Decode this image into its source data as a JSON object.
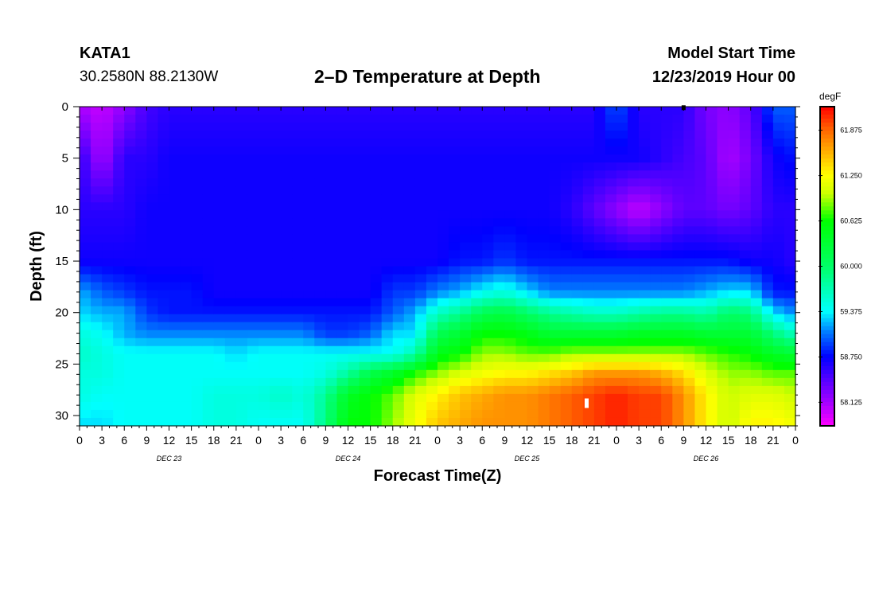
{
  "header": {
    "station": "KATA1",
    "coordinates": "30.2580N 88.2130W",
    "title": "2–D Temperature at Depth",
    "model_start_label": "Model Start Time",
    "model_start_value": "12/23/2019 Hour 00"
  },
  "colorbar": {
    "unit": "degF",
    "tick_labels": [
      "61.875",
      "61.250",
      "60.625",
      "60.000",
      "59.375",
      "58.750",
      "58.125"
    ]
  },
  "chart_data": {
    "type": "heatmap",
    "title": "2–D Temperature at Depth",
    "xlabel": "Forecast Time(Z)",
    "ylabel": "Depth (ft)",
    "x_tick_labels": [
      "0",
      "3",
      "6",
      "9",
      "12",
      "15",
      "18",
      "21",
      "0",
      "3",
      "6",
      "9",
      "12",
      "15",
      "18",
      "21",
      "0",
      "3",
      "6",
      "9",
      "12",
      "15",
      "18",
      "21",
      "0",
      "3",
      "6",
      "9",
      "12",
      "15",
      "18",
      "21",
      "0"
    ],
    "x_range_hours": [
      0,
      96
    ],
    "date_labels": [
      {
        "label": "DEC 23",
        "hour": 12
      },
      {
        "label": "DEC 24",
        "hour": 36
      },
      {
        "label": "DEC 25",
        "hour": 60
      },
      {
        "label": "DEC 26",
        "hour": 84
      }
    ],
    "y_tick_labels": [
      "0",
      "5",
      "10",
      "15",
      "20",
      "25",
      "30"
    ],
    "y_range_ft": [
      0,
      31
    ],
    "y_inverted": true,
    "value_unit": "degF",
    "value_range": [
      57.8,
      62.2
    ],
    "colorscale": [
      {
        "v": 57.8,
        "c": "#ff00ff"
      },
      {
        "v": 58.1,
        "c": "#aa00ff"
      },
      {
        "v": 58.5,
        "c": "#4400ff"
      },
      {
        "v": 58.75,
        "c": "#0000ff"
      },
      {
        "v": 59.1,
        "c": "#0080ff"
      },
      {
        "v": 59.375,
        "c": "#00ffff"
      },
      {
        "v": 60.0,
        "c": "#00ff66"
      },
      {
        "v": 60.625,
        "c": "#00ff00"
      },
      {
        "v": 61.0,
        "c": "#ccff00"
      },
      {
        "v": 61.25,
        "c": "#ffff00"
      },
      {
        "v": 61.6,
        "c": "#ffaa00"
      },
      {
        "v": 61.875,
        "c": "#ff6600"
      },
      {
        "v": 62.2,
        "c": "#ff0000"
      }
    ],
    "hours": [
      0,
      3,
      6,
      9,
      12,
      15,
      18,
      21,
      24,
      27,
      30,
      33,
      36,
      39,
      42,
      45,
      48,
      51,
      54,
      57,
      60,
      63,
      66,
      69,
      72,
      75,
      78,
      81,
      84,
      87,
      90,
      93,
      96
    ],
    "depths_ft": [
      0,
      5,
      10,
      15,
      18,
      20,
      22,
      24,
      26,
      28,
      31
    ],
    "values": [
      [
        58.1,
        58.6,
        58.6,
        58.7,
        59.2,
        59.3,
        59.5,
        59.6,
        59.5,
        59.5,
        59.3
      ],
      [
        58.0,
        58.1,
        58.6,
        58.7,
        59.0,
        59.2,
        59.4,
        59.5,
        59.5,
        59.4,
        59.3
      ],
      [
        58.2,
        58.6,
        58.6,
        58.7,
        58.9,
        59.2,
        59.2,
        59.4,
        59.4,
        59.4,
        59.4
      ],
      [
        58.5,
        58.6,
        58.7,
        58.7,
        58.8,
        58.9,
        59.1,
        59.4,
        59.4,
        59.4,
        59.4
      ],
      [
        58.6,
        58.7,
        58.7,
        58.7,
        58.8,
        58.8,
        59.1,
        59.4,
        59.4,
        59.4,
        59.4
      ],
      [
        58.6,
        58.7,
        58.7,
        58.7,
        58.8,
        58.8,
        59.1,
        59.4,
        59.4,
        59.4,
        59.4
      ],
      [
        58.6,
        58.7,
        58.7,
        58.7,
        58.7,
        58.8,
        59.1,
        59.4,
        59.4,
        59.5,
        59.5
      ],
      [
        58.6,
        58.7,
        58.7,
        58.7,
        58.7,
        58.8,
        59.1,
        59.3,
        59.4,
        59.5,
        59.5
      ],
      [
        58.6,
        58.7,
        58.7,
        58.7,
        58.7,
        58.8,
        59.1,
        59.4,
        59.4,
        59.5,
        59.4
      ],
      [
        58.6,
        58.7,
        58.7,
        58.7,
        58.7,
        58.8,
        59.1,
        59.4,
        59.4,
        59.6,
        59.4
      ],
      [
        58.6,
        58.7,
        58.7,
        58.7,
        58.7,
        58.8,
        59.1,
        59.4,
        59.4,
        59.5,
        59.4
      ],
      [
        58.6,
        58.7,
        58.7,
        58.7,
        58.7,
        58.8,
        58.9,
        59.4,
        59.5,
        59.8,
        59.9
      ],
      [
        58.6,
        58.7,
        58.7,
        58.7,
        58.7,
        58.8,
        58.9,
        59.4,
        59.8,
        60.4,
        60.6
      ],
      [
        58.6,
        58.7,
        58.7,
        58.7,
        58.7,
        58.8,
        59.0,
        59.4,
        60.2,
        60.6,
        60.6
      ],
      [
        58.6,
        58.7,
        58.7,
        58.7,
        58.9,
        59.0,
        59.3,
        59.4,
        60.4,
        60.8,
        60.9
      ],
      [
        58.6,
        58.7,
        58.7,
        58.7,
        58.9,
        59.2,
        59.3,
        59.7,
        60.7,
        61.1,
        61.2
      ],
      [
        58.6,
        58.7,
        58.7,
        58.7,
        59.1,
        59.6,
        60.1,
        60.5,
        60.9,
        61.3,
        61.5
      ],
      [
        58.6,
        58.7,
        58.7,
        58.8,
        59.2,
        59.8,
        60.3,
        60.6,
        61.1,
        61.5,
        61.6
      ],
      [
        58.6,
        58.7,
        58.7,
        58.8,
        59.4,
        60.1,
        60.6,
        60.9,
        61.2,
        61.6,
        61.7
      ],
      [
        58.6,
        58.7,
        58.7,
        58.9,
        59.5,
        60.2,
        60.6,
        60.9,
        61.3,
        61.7,
        61.7
      ],
      [
        58.6,
        58.7,
        58.7,
        58.8,
        59.3,
        60.0,
        60.5,
        60.8,
        61.3,
        61.7,
        61.7
      ],
      [
        58.6,
        58.7,
        58.7,
        58.8,
        59.1,
        59.8,
        60.3,
        60.8,
        61.4,
        61.8,
        61.8
      ],
      [
        58.6,
        58.7,
        58.6,
        58.8,
        59.1,
        59.7,
        60.3,
        60.9,
        61.5,
        61.9,
        61.9
      ],
      [
        58.6,
        58.7,
        58.4,
        58.8,
        59.1,
        59.6,
        60.3,
        60.9,
        61.7,
        62.0,
        62.0
      ],
      [
        59.0,
        58.7,
        58.2,
        58.8,
        59.1,
        59.6,
        60.3,
        60.9,
        61.7,
        62.1,
        62.1
      ],
      [
        58.6,
        58.7,
        58.0,
        58.8,
        59.1,
        59.7,
        60.4,
        60.9,
        61.7,
        62.0,
        62.0
      ],
      [
        58.6,
        58.6,
        58.2,
        58.8,
        59.1,
        59.8,
        60.4,
        60.9,
        61.6,
        62.0,
        62.0
      ],
      [
        58.6,
        58.5,
        58.4,
        58.8,
        59.1,
        59.8,
        60.4,
        60.9,
        61.4,
        61.7,
        61.7
      ],
      [
        58.3,
        58.4,
        58.4,
        58.8,
        59.2,
        59.7,
        60.3,
        60.8,
        61.1,
        61.3,
        61.3
      ],
      [
        58.2,
        58.1,
        58.3,
        58.8,
        59.3,
        60.0,
        60.3,
        60.7,
        60.9,
        61.0,
        61.0
      ],
      [
        58.4,
        58.3,
        58.4,
        58.7,
        59.3,
        59.9,
        60.3,
        60.6,
        60.9,
        61.1,
        61.3
      ],
      [
        59.0,
        58.7,
        58.6,
        58.7,
        58.8,
        59.3,
        59.9,
        60.4,
        60.8,
        61.1,
        61.3
      ],
      [
        59.0,
        58.8,
        58.6,
        58.6,
        58.8,
        59.1,
        59.6,
        60.3,
        60.8,
        61.0,
        61.2
      ]
    ],
    "markers": [
      {
        "kind": "max",
        "hour": 68,
        "depth_ft": 28.8,
        "color": "#ffffff"
      },
      {
        "kind": "min",
        "hour": 81,
        "depth_ft": 0.1,
        "color": "#000000"
      }
    ]
  }
}
